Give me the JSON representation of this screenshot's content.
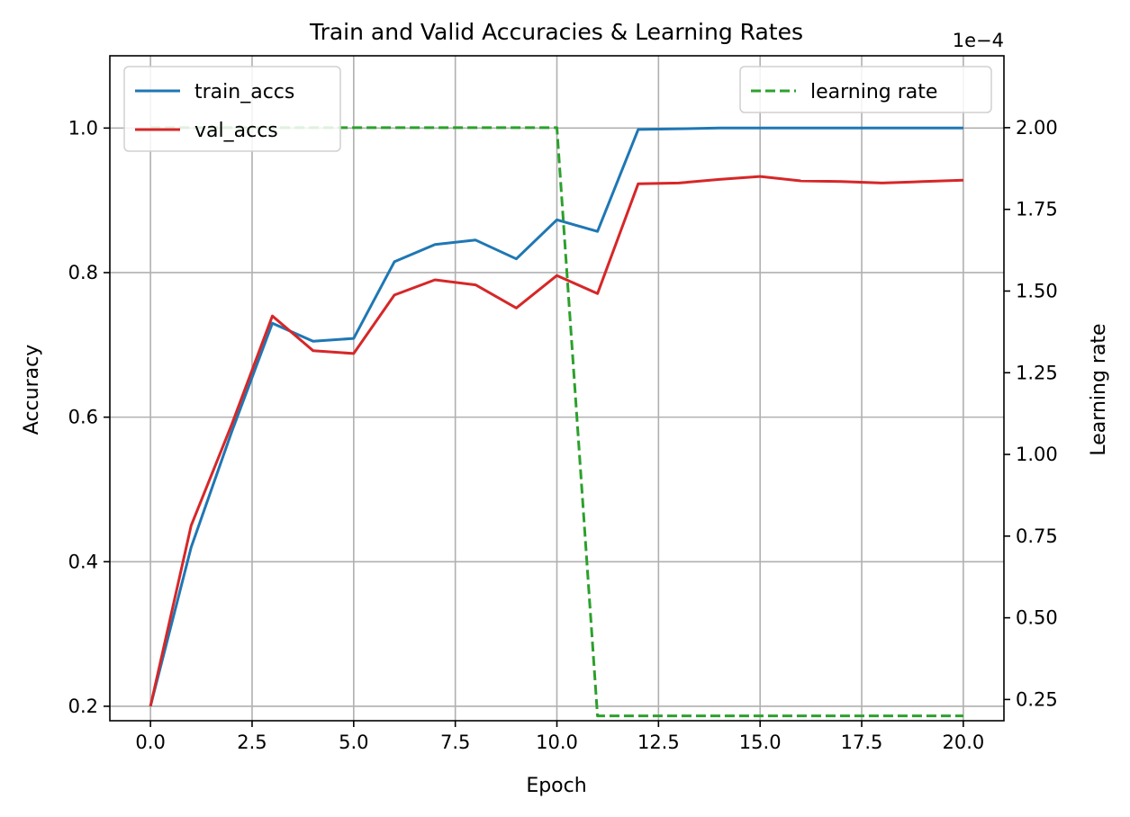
{
  "chart_data": {
    "type": "line",
    "title": "Train and Valid Accuracies & Learning Rates",
    "xlabel": "Epoch",
    "ylabel": "Accuracy",
    "y2label": "Learning rate",
    "y2_offset_text": "1e−4",
    "xlim": [
      -1,
      21
    ],
    "ylim": [
      0.18,
      1.1
    ],
    "y2lim": [
      0.185,
      2.22
    ],
    "x_ticks": [
      0.0,
      2.5,
      5.0,
      7.5,
      10.0,
      12.5,
      15.0,
      17.5,
      20.0
    ],
    "x_tick_labels": [
      "0.0",
      "2.5",
      "5.0",
      "7.5",
      "10.0",
      "12.5",
      "15.0",
      "17.5",
      "20.0"
    ],
    "y_ticks": [
      0.2,
      0.4,
      0.6,
      0.8,
      1.0
    ],
    "y_tick_labels": [
      "0.2",
      "0.4",
      "0.6",
      "0.8",
      "1.0"
    ],
    "y2_ticks": [
      0.25,
      0.5,
      0.75,
      1.0,
      1.25,
      1.5,
      1.75,
      2.0
    ],
    "y2_tick_labels": [
      "0.25",
      "0.50",
      "0.75",
      "1.00",
      "1.25",
      "1.50",
      "1.75",
      "2.00"
    ],
    "grid": true,
    "x": [
      0,
      1,
      2,
      3,
      4,
      5,
      6,
      7,
      8,
      9,
      10,
      11,
      12,
      13,
      14,
      15,
      16,
      17,
      18,
      19,
      20
    ],
    "series": [
      {
        "name": "train_accs",
        "axis": "left",
        "color": "#1f77b4",
        "style": "solid",
        "values": [
          0.2,
          0.42,
          0.58,
          0.73,
          0.705,
          0.709,
          0.815,
          0.839,
          0.845,
          0.819,
          0.873,
          0.857,
          0.998,
          0.999,
          1.0,
          1.0,
          1.0,
          1.0,
          1.0,
          1.0,
          1.0
        ]
      },
      {
        "name": "val_accs",
        "axis": "left",
        "color": "#d62728",
        "style": "solid",
        "values": [
          0.2,
          0.45,
          0.59,
          0.74,
          0.692,
          0.688,
          0.769,
          0.79,
          0.783,
          0.751,
          0.796,
          0.771,
          0.923,
          0.924,
          0.929,
          0.933,
          0.927,
          0.926,
          0.924,
          0.926,
          0.928
        ]
      },
      {
        "name": "learning rate",
        "axis": "right",
        "color": "#2ca02c",
        "style": "dashed",
        "values": [
          2.0,
          2.0,
          2.0,
          2.0,
          2.0,
          2.0,
          2.0,
          2.0,
          2.0,
          2.0,
          2.0,
          0.2,
          0.2,
          0.2,
          0.2,
          0.2,
          0.2,
          0.2,
          0.2,
          0.2,
          0.2
        ]
      }
    ],
    "legends": [
      {
        "placement": "top-left",
        "entries": [
          "train_accs",
          "val_accs"
        ]
      },
      {
        "placement": "top-right",
        "entries": [
          "learning rate"
        ]
      }
    ]
  }
}
